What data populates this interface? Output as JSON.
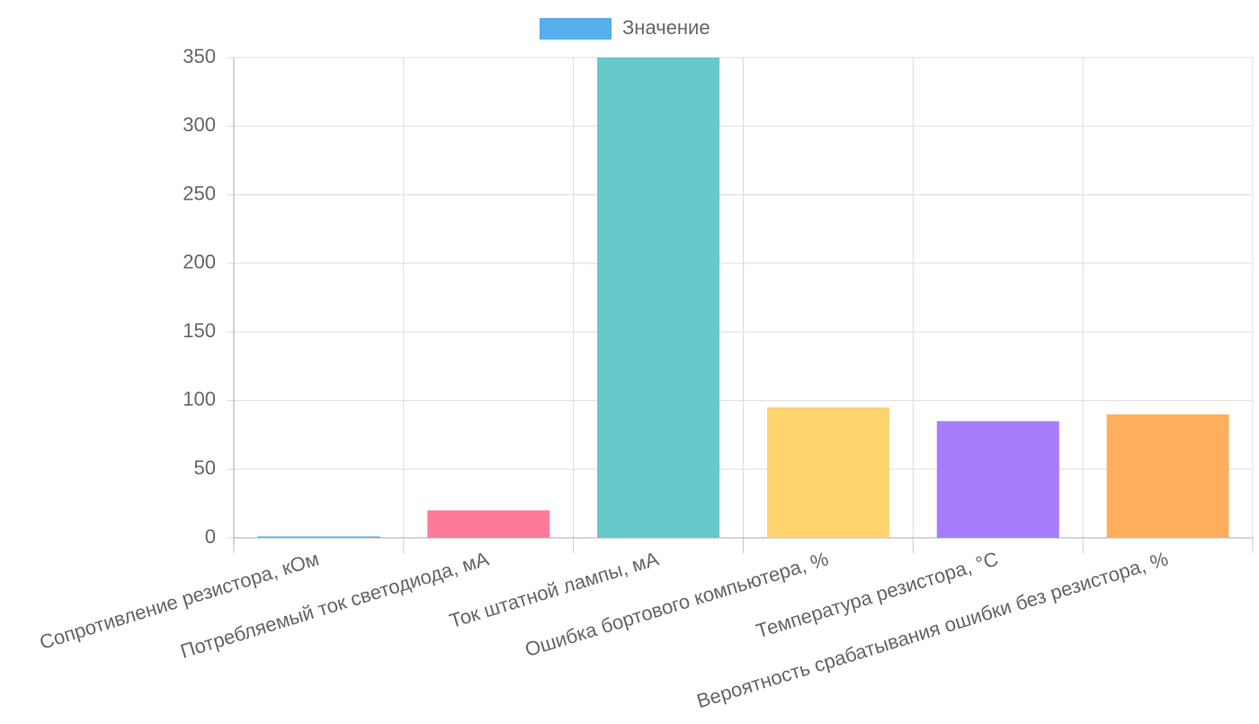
{
  "chart_data": {
    "type": "bar",
    "categories": [
      "Сопротивление резистора, кОм",
      "Потребляемый ток светодиода, мА",
      "Ток штатной лампы, мА",
      "Ошибка бортового компьютера, %",
      "Температура резистора, °C",
      "Вероятность срабатывания ошибки без резистора, %"
    ],
    "series": [
      {
        "name": "Значение",
        "color": "#56aeeb",
        "values": [
          1,
          20,
          350,
          95,
          85,
          90
        ],
        "colors": [
          "#5aade9",
          "#ff7a98",
          "#66c8c8",
          "#ffd36e",
          "#a77bfc",
          "#ffae5e"
        ]
      }
    ],
    "ylim": [
      0,
      350
    ],
    "yticks": [
      0,
      50,
      100,
      150,
      200,
      250,
      300,
      350
    ],
    "grid": true,
    "legend": "top"
  }
}
